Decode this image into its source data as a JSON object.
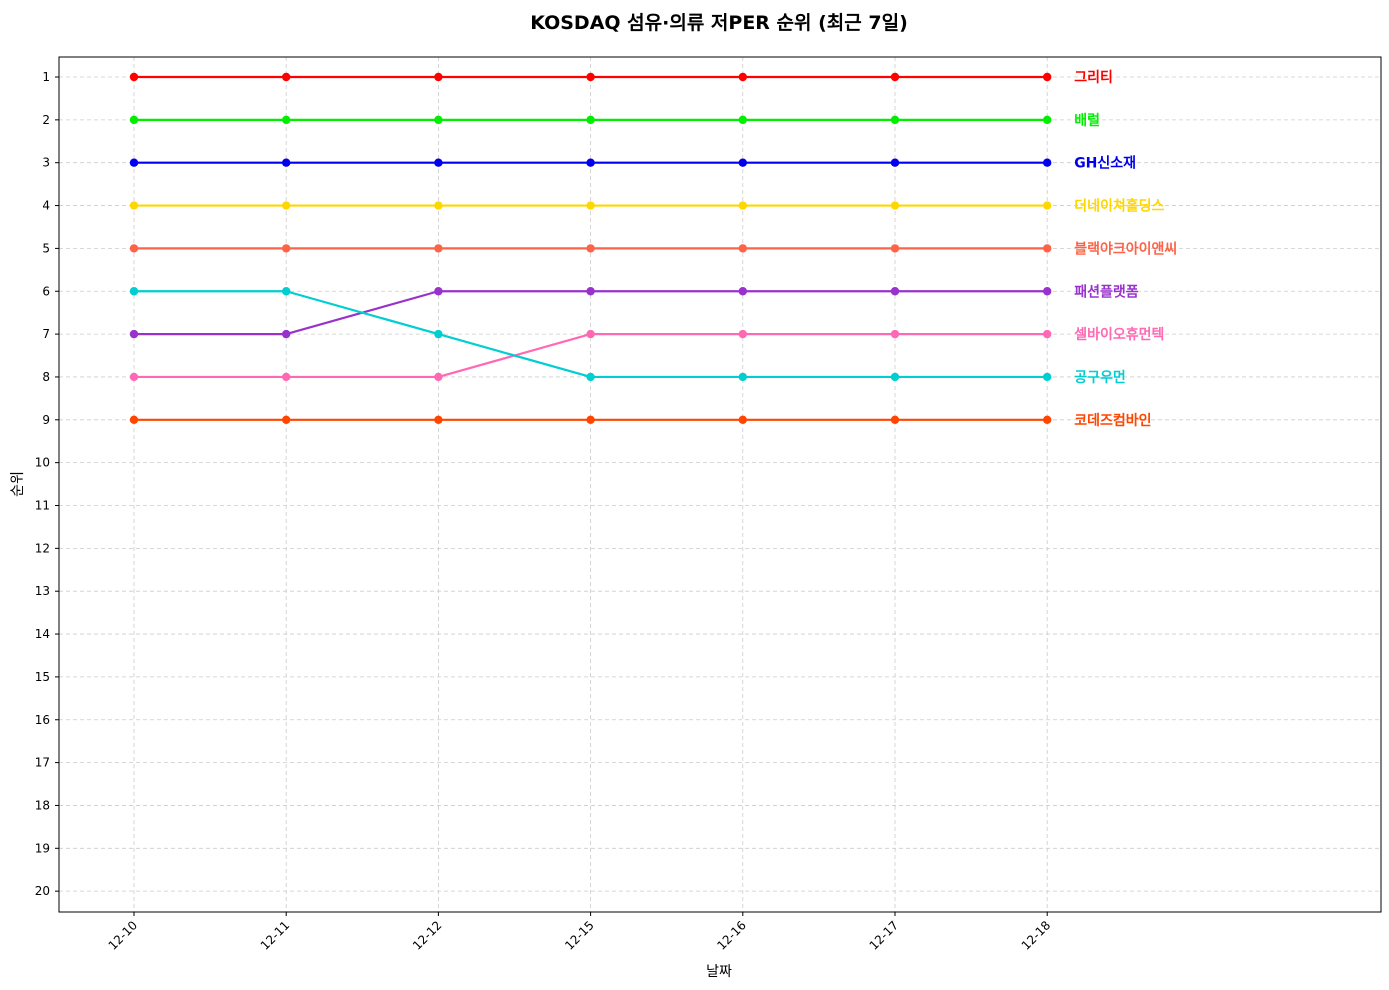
{
  "chart_data": {
    "type": "line",
    "title": "KOSDAQ 섬유·의류 저PER 순위 (최근 7일)",
    "xlabel": "날짜",
    "ylabel": "순위",
    "categories": [
      "12-10",
      "12-11",
      "12-12",
      "12-15",
      "12-16",
      "12-17",
      "12-18"
    ],
    "y_ticks": [
      1,
      2,
      3,
      4,
      5,
      6,
      7,
      8,
      9,
      10,
      11,
      12,
      13,
      14,
      15,
      16,
      17,
      18,
      19,
      20
    ],
    "ylim": [
      20.5,
      0.5
    ],
    "y_inverted": true,
    "grid": true,
    "legend": "labels at line ends (right)",
    "series": [
      {
        "name": "그리티",
        "color": "#ff0000",
        "values": [
          1,
          1,
          1,
          1,
          1,
          1,
          1
        ]
      },
      {
        "name": "배럴",
        "color": "#00ee00",
        "values": [
          2,
          2,
          2,
          2,
          2,
          2,
          2
        ]
      },
      {
        "name": "GH신소재",
        "color": "#0000ee",
        "values": [
          3,
          3,
          3,
          3,
          3,
          3,
          3
        ]
      },
      {
        "name": "더네이쳐홀딩스",
        "color": "#ffd700",
        "values": [
          4,
          4,
          4,
          4,
          4,
          4,
          4
        ]
      },
      {
        "name": "블랙야크아이앤씨",
        "color": "#ff6347",
        "values": [
          5,
          5,
          5,
          5,
          5,
          5,
          5
        ]
      },
      {
        "name": "패션플랫폼",
        "color": "#9932cc",
        "values": [
          7,
          7,
          6,
          6,
          6,
          6,
          6
        ]
      },
      {
        "name": "셀바이오휴먼텍",
        "color": "#ff69b4",
        "values": [
          8,
          8,
          8,
          7,
          7,
          7,
          7
        ]
      },
      {
        "name": "공구우먼",
        "color": "#00ced1",
        "values": [
          6,
          6,
          7,
          8,
          8,
          8,
          8
        ]
      },
      {
        "name": "코데즈컴바인",
        "color": "#ff4500",
        "values": [
          9,
          9,
          9,
          9,
          9,
          9,
          9
        ]
      }
    ]
  }
}
